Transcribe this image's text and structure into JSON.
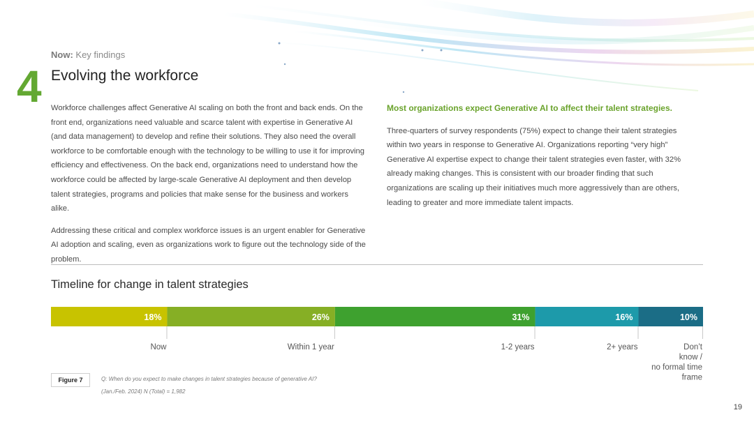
{
  "header": {
    "section_number": "4",
    "kicker_bold": "Now:",
    "kicker_rest": " Key findings",
    "title": "Evolving the workforce"
  },
  "left_column": {
    "paragraphs": [
      "Workforce challenges affect Generative AI scaling on both the front and back ends. On the front end, organizations need valuable and scarce talent with expertise in Generative AI (and data management) to develop and refine their solutions. They also need the overall workforce to be comfortable enough with the technology to be willing to use it for improving efficiency and effectiveness. On the back end, organizations need to understand how the workforce could be affected by large-scale Generative AI deployment and then develop talent strategies, programs and policies that make sense for the business and workers alike.",
      "Addressing these critical and complex workforce issues is an urgent enabler for Generative AI adoption and scaling, even as organizations work to figure out the technology side of the problem."
    ]
  },
  "right_column": {
    "lead": "Most organizations expect Generative AI to affect their talent strategies.",
    "body": "Three-quarters of survey respondents (75%) expect to change their talent strategies within two years in response to Generative AI. Organizations reporting “very high” Generative AI expertise expect to change their talent strategies even faster, with 32% already making changes. This is consistent with our broader finding that such organizations are scaling up their initiatives much more aggressively than are others, leading to greater and more immediate talent impacts."
  },
  "chart_title": "Timeline for change in talent strategies",
  "chart_data": {
    "type": "bar",
    "orientation": "horizontal-stacked-100",
    "categories": [
      "Now",
      "Within 1 year",
      "1-2 years",
      "2+ years",
      "Don’t know / no formal time frame"
    ],
    "values": [
      18,
      26,
      31,
      16,
      10
    ],
    "value_labels": [
      "18%",
      "26%",
      "31%",
      "16%",
      "10%"
    ],
    "category_label_lines": [
      [
        "Now"
      ],
      [
        "Within 1 year"
      ],
      [
        "1-2 years"
      ],
      [
        "2+ years"
      ],
      [
        "Don’t",
        "know /",
        "no formal time",
        "frame"
      ]
    ],
    "colors": [
      "#c8c300",
      "#86af25",
      "#3ea12f",
      "#1d9aaa",
      "#1b6d86"
    ],
    "title": "Timeline for change in talent strategies"
  },
  "figure": {
    "label": "Figure 7",
    "question": "Q: When do you expect to make changes in talent strategies because of generative AI?",
    "source": "(Jan./Feb. 2024) N (Total) = 1,982"
  },
  "page_number": "19"
}
